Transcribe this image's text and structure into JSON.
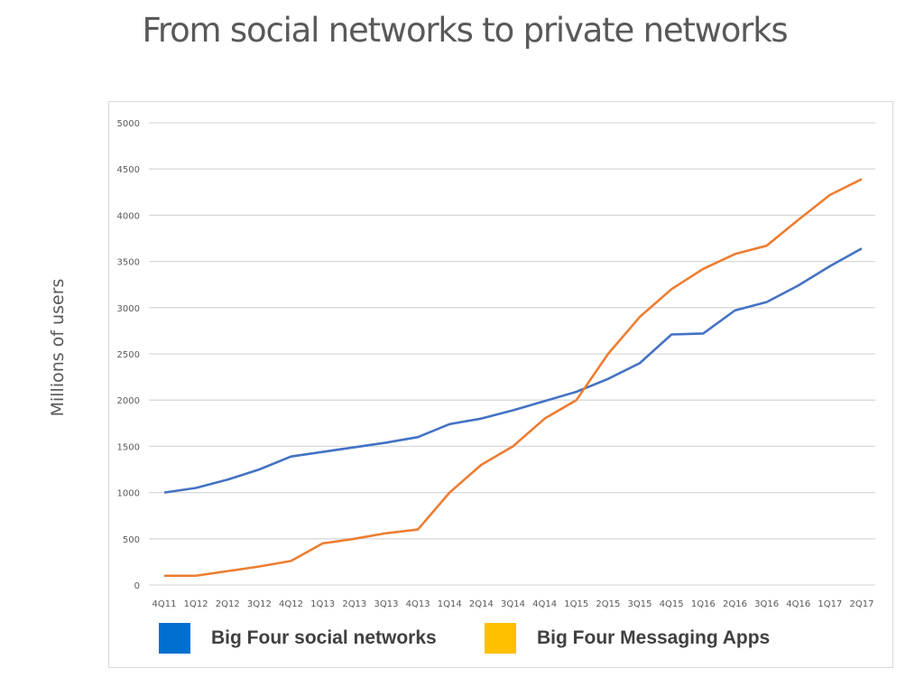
{
  "title": "From social networks to private networks",
  "chart_data": {
    "type": "line",
    "title": "From social networks to private networks",
    "xlabel": "",
    "ylabel": "Millions of users",
    "ylim": [
      0,
      5000
    ],
    "yticks": [
      0,
      500,
      1000,
      1500,
      2000,
      2500,
      3000,
      3500,
      4000,
      4500,
      5000
    ],
    "grid": true,
    "legend_position": "bottom",
    "categories": [
      "4Q11",
      "1Q12",
      "2Q12",
      "3Q12",
      "4Q12",
      "1Q13",
      "2Q13",
      "3Q13",
      "4Q13",
      "1Q14",
      "2Q14",
      "3Q14",
      "4Q14",
      "1Q15",
      "2Q15",
      "3Q15",
      "4Q15",
      "1Q16",
      "2Q16",
      "3Q16",
      "4Q16",
      "1Q17",
      "2Q17"
    ],
    "series": [
      {
        "name": "Big Four social networks",
        "color": "#4472c4",
        "legend_color": "#0070d0",
        "values": [
          1000,
          1050,
          1140,
          1250,
          1390,
          1440,
          1490,
          1540,
          1600,
          1740,
          1800,
          1890,
          1990,
          2090,
          2230,
          2400,
          2710,
          2720,
          2970,
          3060,
          3240,
          3450,
          3640
        ]
      },
      {
        "name": "Big Four Messaging Apps",
        "color": "#ed7d31",
        "legend_color": "#ffc000",
        "values": [
          100,
          100,
          150,
          200,
          260,
          450,
          500,
          560,
          600,
          1000,
          1300,
          1500,
          1800,
          2000,
          2500,
          2900,
          3200,
          3420,
          3580,
          3670,
          3950,
          4220,
          4390
        ]
      }
    ]
  }
}
